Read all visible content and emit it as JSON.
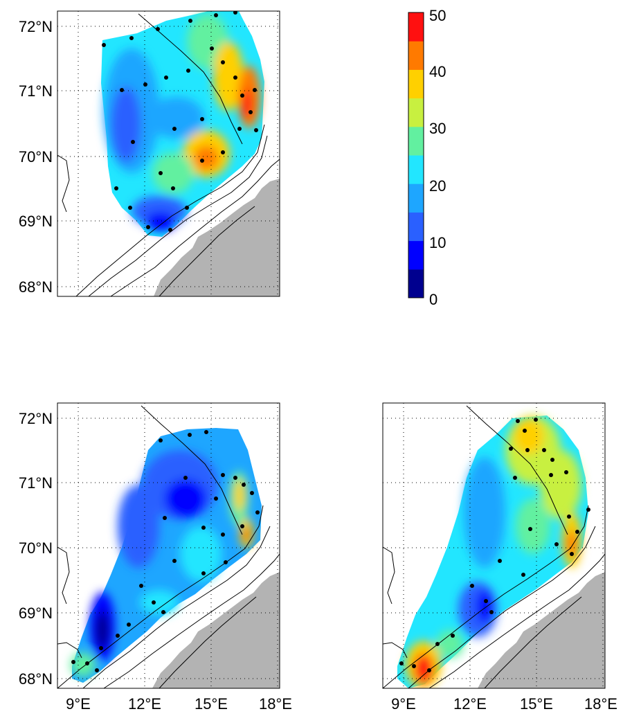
{
  "colorbar": {
    "ticks": [
      "0",
      "10",
      "20",
      "30",
      "40",
      "50"
    ],
    "range": [
      0,
      50
    ],
    "colors": [
      "#00008f",
      "#0000ff",
      "#2a60ff",
      "#1ea6ff",
      "#22e6ff",
      "#62f0a0",
      "#c8f040",
      "#ffd000",
      "#ff7a00",
      "#ff1010"
    ]
  },
  "map_extent": {
    "lon": [
      7.5,
      18.5
    ],
    "lat": [
      67.8,
      72.2
    ]
  },
  "lat_ticks": [
    "72°N",
    "71°N",
    "70°N",
    "69°N",
    "68°N"
  ],
  "lon_ticks": [
    "9°E",
    "12°E",
    "15°E",
    "18°E"
  ],
  "land_color": "#b3b3b3",
  "panels": [
    {
      "id": "top-left",
      "show_lat_labels": true,
      "show_lon_labels": false
    },
    {
      "id": "bottom-left",
      "show_lat_labels": true,
      "show_lon_labels": true
    },
    {
      "id": "bottom-right",
      "show_lat_labels": false,
      "show_lon_labels": true
    }
  ]
}
